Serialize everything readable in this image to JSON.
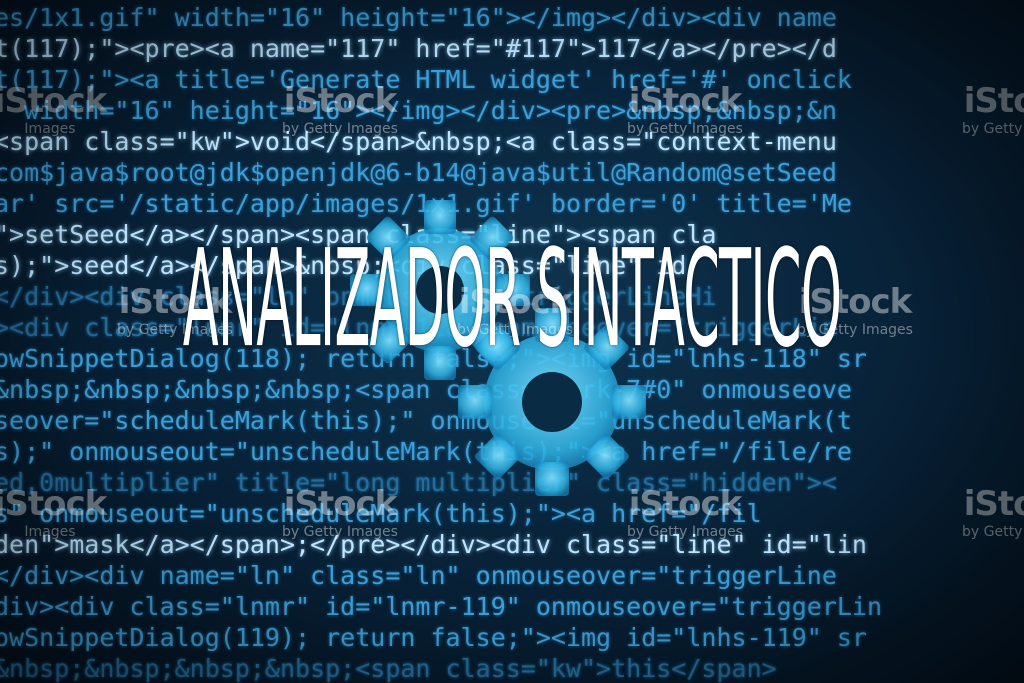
{
  "photo": {
    "headline": "ANALIZADOR SINTACTICO",
    "code_lines": [
      "es/1x1.gif\" width=\"16\" height=\"16\"></img></div><div name",
      "t(117);\"><pre><a name=\"117\" href=\"#117\">117</a></pre></d",
      "t(117);\"><a title='Generate HTML widget' href='#' onclick",
      "  width=\"16\" height=\"16\"></img></div><pre>&nbsp;&nbsp;&n",
      "<span class=\"kw\">void</span>&nbsp;<a class=\"context-menu",
      "com$java$root@jdk$openjdk@6-b14@java$util@Random@setSeed",
      "ar' src='/static/app/images/1x1.gif' border='0' title='Me",
      "\">setSeed</a></span><span class=\"line\"><span cla",
      "s);\">seed</a></span>&nbsp;<div class=\"line\" id",
      "</div><div class=\"ln\" onmouseover=\"triggerLineHi",
      "><div class=\"lnmr\" id=\"lnmr-118\" onmouseover=\"triggerLin",
      "owSnippetDialog(118); return false;\"><img id=\"lnhs-118\" sr",
      "&nbsp;&nbsp;&nbsp;&nbsp;<span class=\"mark-7#0\" onmouseove",
      "seover=\"scheduleMark(this);\" onmouseout=\"unscheduleMark(t",
      "s);\" onmouseout=\"unscheduleMark(this);\"><a href=\"/file/re",
      "ed,0multiplier\" title=\"long multiplier\" class=\"hidden\"><",
      "s\" onmouseout=\"unscheduleMark(this);\"><a href=\"/fil",
      "den\">mask</a></span>;</pre></div><div class=\"line\" id=\"lin",
      "</div><div name=\"ln\" class=\"ln\" onmouseover=\"triggerLine",
      "div><div class=\"lnmr\" id=\"lnmr-119\" onmouseover=\"triggerLin",
      "owSnippetDialog(119); return false;\"><img id=\"lnhs-119\" sr",
      "&nbsp;&nbsp;&nbsp;&nbsp;<span class=\"kw\">this</span>"
    ],
    "bright_line_indices": [
      1,
      4,
      7,
      8,
      17
    ],
    "watermark": {
      "logo": "iStock",
      "subtitle": "by Getty Images",
      "subtitle_short": "Images"
    },
    "colors": {
      "background": "#08233a",
      "code": "#3d9fd6",
      "code_bright": "#bfe6ff",
      "gear": "#3ec6ee",
      "headline": "#ffffff"
    }
  }
}
